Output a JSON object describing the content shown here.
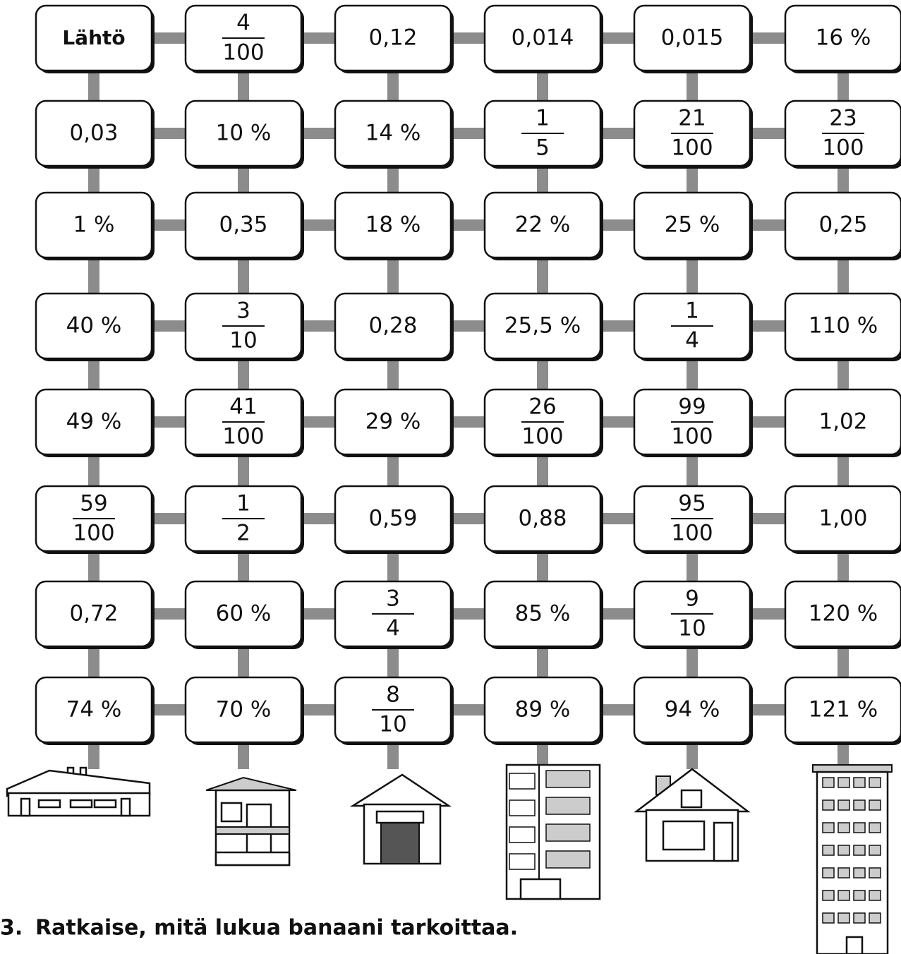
{
  "grid": {
    "rows": [
      [
        "Lähtö",
        {
          "numerator": "4",
          "denominator": "100"
        },
        "0,12",
        "0,014",
        "0,015",
        "16 %"
      ],
      [
        "0,03",
        "10 %",
        "14 %",
        {
          "numerator": "1",
          "denominator": "5"
        },
        {
          "numerator": "21",
          "denominator": "100"
        },
        {
          "numerator": "23",
          "denominator": "100"
        }
      ],
      [
        "1 %",
        "0,35",
        "18 %",
        "22 %",
        "25 %",
        "0,25"
      ],
      [
        "40 %",
        {
          "numerator": "3",
          "denominator": "10"
        },
        "0,28",
        "25,5 %",
        {
          "numerator": "1",
          "denominator": "4"
        },
        "110 %"
      ],
      [
        "49 %",
        {
          "numerator": "41",
          "denominator": "100"
        },
        "29 %",
        {
          "numerator": "26",
          "denominator": "100"
        },
        {
          "numerator": "99",
          "denominator": "100"
        },
        "1,02"
      ],
      [
        {
          "numerator": "59",
          "denominator": "100"
        },
        {
          "numerator": "1",
          "denominator": "2"
        },
        "0,59",
        "0,88",
        {
          "numerator": "95",
          "denominator": "100"
        },
        "1,00"
      ],
      [
        "0,72",
        "60 %",
        {
          "numerator": "3",
          "denominator": "4"
        },
        "85 %",
        {
          "numerator": "9",
          "denominator": "10"
        },
        "120 %"
      ],
      [
        "74 %",
        "70 %",
        {
          "numerator": "8",
          "denominator": "10"
        },
        "89 %",
        "94 %",
        "121 %"
      ]
    ]
  },
  "task": {
    "number": "3.",
    "text": "Ratkaise, mitä lukua banaani tarkoittaa."
  }
}
